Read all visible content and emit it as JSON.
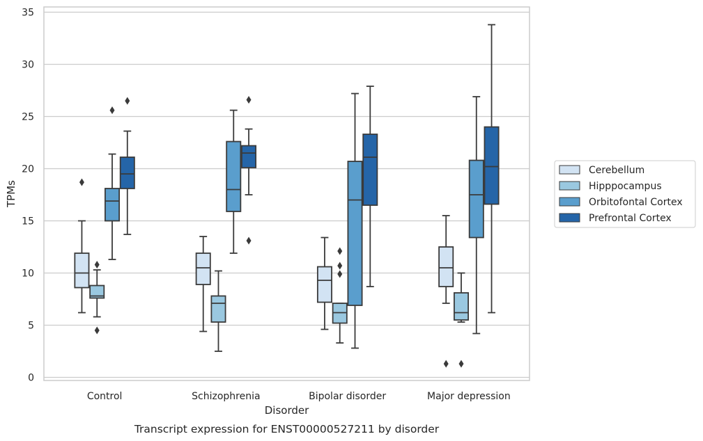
{
  "chart_data": {
    "type": "box",
    "caption": "Transcript expression for ENST00000527211 by disorder",
    "xlabel": "Disorder",
    "ylabel": "TPMs",
    "ylim": [
      -0.3,
      35.5
    ],
    "yticks": [
      0,
      5,
      10,
      15,
      20,
      25,
      30,
      35
    ],
    "grid": true,
    "legend_position": "right",
    "categories": [
      "Control",
      "Schizophrenia",
      "Bipolar disorder",
      "Major depression"
    ],
    "series": [
      {
        "name": "Cerebellum",
        "color": "#d2e3f3",
        "boxes": [
          {
            "whislo": 6.2,
            "q1": 8.6,
            "med": 10.0,
            "q3": 11.9,
            "whishi": 15.0,
            "fliers": [
              18.7
            ]
          },
          {
            "whislo": 4.4,
            "q1": 8.9,
            "med": 10.5,
            "q3": 11.9,
            "whishi": 13.5,
            "fliers": []
          },
          {
            "whislo": 4.6,
            "q1": 7.2,
            "med": 9.3,
            "q3": 10.6,
            "whishi": 13.4,
            "fliers": []
          },
          {
            "whislo": 7.1,
            "q1": 8.7,
            "med": 10.5,
            "q3": 12.5,
            "whishi": 15.5,
            "fliers": [
              1.3
            ]
          }
        ]
      },
      {
        "name": "Hipppocampus",
        "color": "#9ac8e0",
        "boxes": [
          {
            "whislo": 5.8,
            "q1": 7.6,
            "med": 7.8,
            "q3": 8.8,
            "whishi": 10.3,
            "fliers": [
              4.5,
              10.8
            ]
          },
          {
            "whislo": 2.5,
            "q1": 5.3,
            "med": 7.1,
            "q3": 7.8,
            "whishi": 10.2,
            "fliers": []
          },
          {
            "whislo": 3.3,
            "q1": 5.2,
            "med": 6.2,
            "q3": 7.1,
            "whishi": 7.1,
            "fliers": [
              9.9,
              10.7,
              12.1
            ]
          },
          {
            "whislo": 5.3,
            "q1": 5.5,
            "med": 6.2,
            "q3": 8.1,
            "whishi": 10.0,
            "fliers": [
              1.3
            ]
          }
        ]
      },
      {
        "name": "Orbitofontal Cortex",
        "color": "#5a9ecd",
        "boxes": [
          {
            "whislo": 11.3,
            "q1": 15.0,
            "med": 16.9,
            "q3": 18.1,
            "whishi": 21.4,
            "fliers": [
              25.6
            ]
          },
          {
            "whislo": 11.9,
            "q1": 15.9,
            "med": 18.0,
            "q3": 22.6,
            "whishi": 25.6,
            "fliers": []
          },
          {
            "whislo": 2.8,
            "q1": 6.9,
            "med": 17.0,
            "q3": 20.7,
            "whishi": 27.2,
            "fliers": []
          },
          {
            "whislo": 4.2,
            "q1": 13.4,
            "med": 17.5,
            "q3": 20.8,
            "whishi": 26.9,
            "fliers": []
          }
        ]
      },
      {
        "name": "Prefrontal Cortex",
        "color": "#2565a8",
        "boxes": [
          {
            "whislo": 13.7,
            "q1": 18.1,
            "med": 19.5,
            "q3": 21.1,
            "whishi": 23.6,
            "fliers": [
              26.5
            ]
          },
          {
            "whislo": 17.5,
            "q1": 20.1,
            "med": 21.5,
            "q3": 22.2,
            "whishi": 23.8,
            "fliers": [
              13.1,
              26.6
            ]
          },
          {
            "whislo": 8.7,
            "q1": 16.5,
            "med": 21.1,
            "q3": 23.3,
            "whishi": 27.9,
            "fliers": []
          },
          {
            "whislo": 6.2,
            "q1": 16.6,
            "med": 20.2,
            "q3": 24.0,
            "whishi": 33.8,
            "fliers": []
          }
        ]
      }
    ]
  }
}
